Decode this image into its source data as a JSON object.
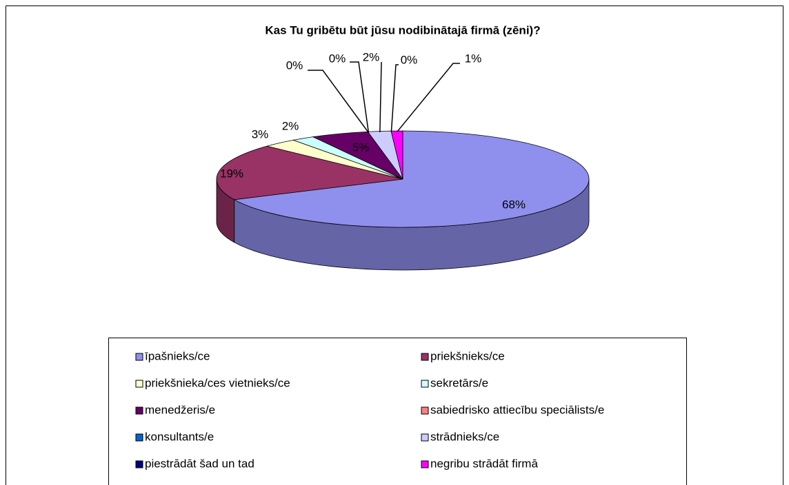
{
  "chart_data": {
    "type": "pie3d",
    "title": "Kas Tu gribētu būt jūsu nodibinātajā firmā (zēni)?",
    "categories": [
      "īpašnieks/ce",
      "priekšnieks/ce",
      "priekšnieka/ces vietnieks/ce",
      "sekretārs/e",
      "menedžeris/e",
      "sabiedrisko attiecību speciālists/e",
      "konsultants/e",
      "strādnieks/ce",
      "piestrādāt šad un tad",
      "negribu strādāt firmā"
    ],
    "values": [
      68,
      19,
      3,
      2,
      5,
      0,
      0,
      2,
      0,
      1
    ],
    "value_labels": [
      "68%",
      "19%",
      "3%",
      "2%",
      "5%",
      "0%",
      "0%",
      "2%",
      "0%",
      "1%"
    ],
    "colors": [
      "#8f8fee",
      "#993366",
      "#ffffcc",
      "#ccffff",
      "#660066",
      "#ff8080",
      "#0066cc",
      "#ccccff",
      "#000080",
      "#ff00ff"
    ],
    "legend": "bottom"
  }
}
